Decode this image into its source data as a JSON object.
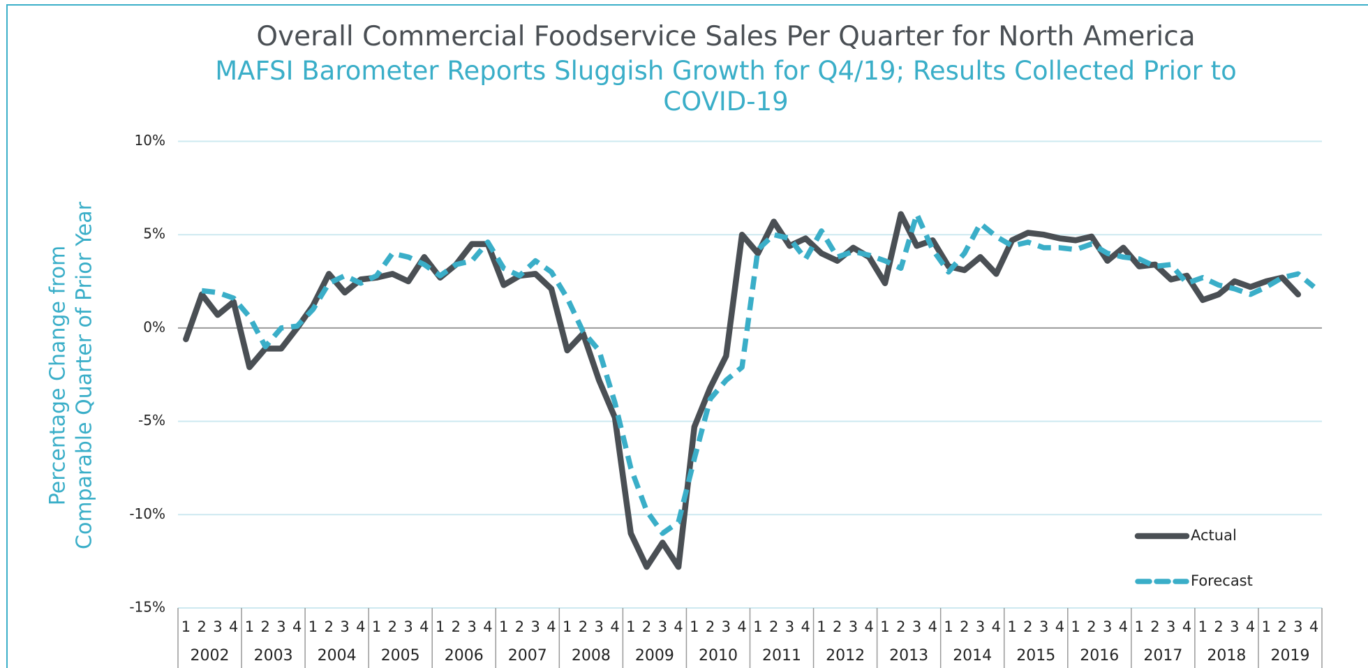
{
  "chart_data": {
    "type": "line",
    "title": "Overall Commercial Foodservice Sales Per Quarter for North America",
    "subtitle": "MAFSI Barometer Reports Sluggish Growth for Q4/19; Results Collected Prior to COVID-19",
    "ylabel": [
      "Percentage Change from",
      "Comparable Quarter of Prior Year"
    ],
    "categories": [
      "1",
      "2",
      "3",
      "4",
      "1",
      "2",
      "3",
      "4",
      "1",
      "2",
      "3",
      "4",
      "1",
      "2",
      "3",
      "4",
      "1",
      "2",
      "3",
      "4",
      "1",
      "2",
      "3",
      "4",
      "1",
      "2",
      "3",
      "4",
      "1",
      "2",
      "3",
      "4",
      "1",
      "2",
      "3",
      "4",
      "1",
      "2",
      "3",
      "4",
      "1",
      "2",
      "3",
      "4",
      "1",
      "2",
      "3",
      "4",
      "1",
      "2",
      "3",
      "4",
      "1",
      "2",
      "3",
      "4",
      "1",
      "2",
      "3",
      "4",
      "1",
      "2",
      "3",
      "4",
      "1",
      "2",
      "3",
      "4",
      "1",
      "2",
      "3",
      "4"
    ],
    "years": [
      "2002",
      "2003",
      "2004",
      "2005",
      "2006",
      "2007",
      "2008",
      "2009",
      "2010",
      "2011",
      "2012",
      "2013",
      "2014",
      "2015",
      "2016",
      "2017",
      "2018",
      "2019"
    ],
    "series": [
      {
        "name": "Actual",
        "color": "#4a4f54",
        "dashed": false,
        "values": [
          -0.6,
          1.8,
          0.7,
          1.4,
          -2.1,
          -1.1,
          -1.1,
          0.0,
          1.2,
          2.9,
          1.9,
          2.6,
          2.7,
          2.9,
          2.5,
          3.8,
          2.7,
          3.4,
          4.5,
          4.5,
          2.3,
          2.8,
          2.9,
          2.1,
          -1.2,
          -0.3,
          -2.8,
          -4.8,
          -11.0,
          -12.8,
          -11.5,
          -12.8,
          -5.3,
          -3.2,
          -1.5,
          5.0,
          4.0,
          5.7,
          4.4,
          4.8,
          4.0,
          3.6,
          4.3,
          3.8,
          2.4,
          6.1,
          4.4,
          4.7,
          3.3,
          3.1,
          3.8,
          2.9,
          4.7,
          5.1,
          5.0,
          4.8,
          4.7,
          4.9,
          3.6,
          4.3,
          3.3,
          3.4,
          2.6,
          2.8,
          1.5,
          1.8,
          2.5,
          2.2,
          2.5,
          2.7,
          1.8,
          null
        ]
      },
      {
        "name": "Forecast",
        "color": "#3aaec8",
        "dashed": true,
        "values": [
          null,
          2.0,
          1.9,
          1.6,
          0.6,
          -1.0,
          0.0,
          0.1,
          1.0,
          2.4,
          2.8,
          2.4,
          2.8,
          4.0,
          3.8,
          3.4,
          2.8,
          3.4,
          3.6,
          4.6,
          3.2,
          2.8,
          3.6,
          3.0,
          1.6,
          -0.2,
          -1.2,
          -4.0,
          -7.5,
          -9.8,
          -11.0,
          -10.4,
          -7.0,
          -3.8,
          -2.8,
          -2.1,
          4.2,
          5.0,
          4.8,
          3.7,
          5.2,
          3.8,
          4.1,
          3.9,
          3.6,
          3.2,
          6.1,
          4.2,
          3.0,
          4.0,
          5.6,
          4.9,
          4.4,
          4.6,
          4.3,
          4.3,
          4.2,
          4.5,
          4.0,
          3.8,
          3.7,
          3.3,
          3.4,
          2.4,
          2.7,
          2.3,
          2.1,
          1.8,
          2.2,
          2.7,
          2.9,
          2.2
        ]
      }
    ],
    "ylim": [
      -15,
      10
    ],
    "yticks": [
      {
        "value": -15,
        "label": "-15%"
      },
      {
        "value": -10,
        "label": "-10%"
      },
      {
        "value": -5,
        "label": "-5%"
      },
      {
        "value": 0,
        "label": "0%"
      },
      {
        "value": 5,
        "label": "5%"
      },
      {
        "value": 10,
        "label": "10%"
      }
    ],
    "grid": true,
    "legend": "lower right"
  }
}
